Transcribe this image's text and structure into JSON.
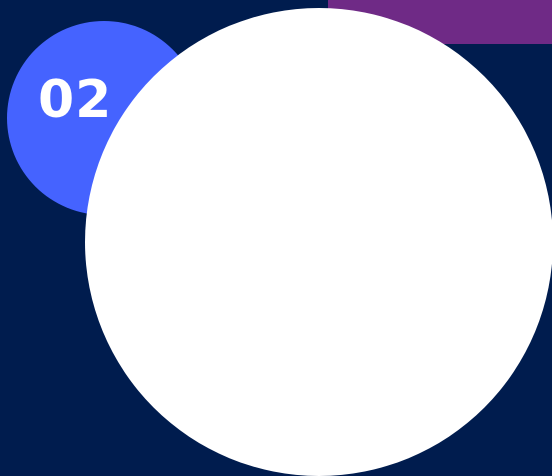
{
  "step": {
    "number": "02"
  },
  "colors": {
    "background": "#001c4e",
    "badge": "#4563ff",
    "accent": "#6f2a86",
    "disc": "#ffffff",
    "number_text": "#ffffff"
  }
}
